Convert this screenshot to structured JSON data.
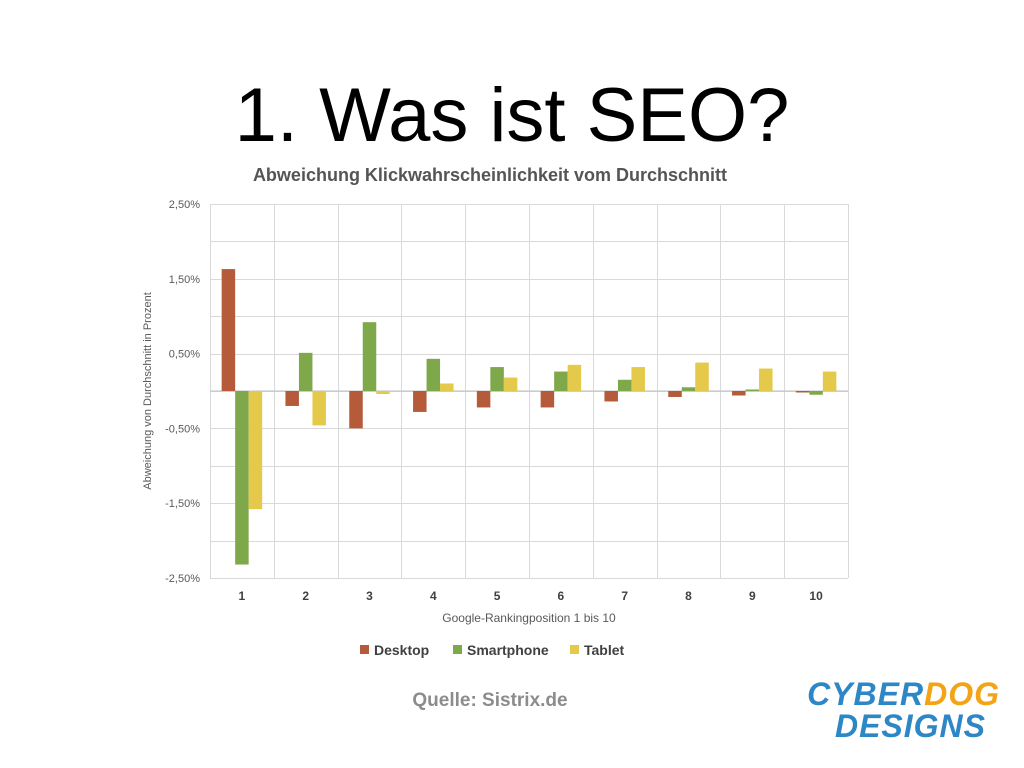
{
  "slide": {
    "title": "1. Was ist SEO?",
    "source": "Quelle: Sistrix.de"
  },
  "logo": {
    "line1_a": "CYBER",
    "line1_b": "DOG",
    "line2": "DESIGNS",
    "colors": {
      "blue": "#2d86c6",
      "orange": "#f2a316"
    }
  },
  "chart_data": {
    "type": "bar",
    "title": "Abweichung  Klickwahrscheinlichkeit  vom Durchschnitt",
    "xlabel": "Google-Rankingposition  1 bis 10",
    "ylabel": "Abweichung  von  Durchschnitt  in Prozent",
    "categories": [
      "1",
      "2",
      "3",
      "4",
      "5",
      "6",
      "7",
      "8",
      "9",
      "10"
    ],
    "ylim": [
      -2.5,
      2.5
    ],
    "yticks": [
      2.5,
      1.5,
      0.5,
      -0.5,
      -1.5,
      -2.5
    ],
    "ytick_labels": [
      "2,50%",
      "1,50%",
      "0,50%",
      "-0,50%",
      "-1,50%",
      "-2,50%"
    ],
    "grid": true,
    "legend_position": "bottom",
    "series": [
      {
        "name": "Desktop",
        "color": "#b55b3a",
        "values": [
          1.63,
          -0.2,
          -0.5,
          -0.28,
          -0.22,
          -0.22,
          -0.14,
          -0.08,
          -0.06,
          -0.02
        ]
      },
      {
        "name": "Smartphone",
        "color": "#7fa84a",
        "values": [
          -2.32,
          0.51,
          0.92,
          0.43,
          0.32,
          0.26,
          0.15,
          0.05,
          0.02,
          -0.05
        ]
      },
      {
        "name": "Tablet",
        "color": "#e5c94a",
        "values": [
          -1.58,
          -0.46,
          -0.04,
          0.1,
          0.18,
          0.35,
          0.32,
          0.38,
          0.3,
          0.26
        ]
      }
    ]
  }
}
